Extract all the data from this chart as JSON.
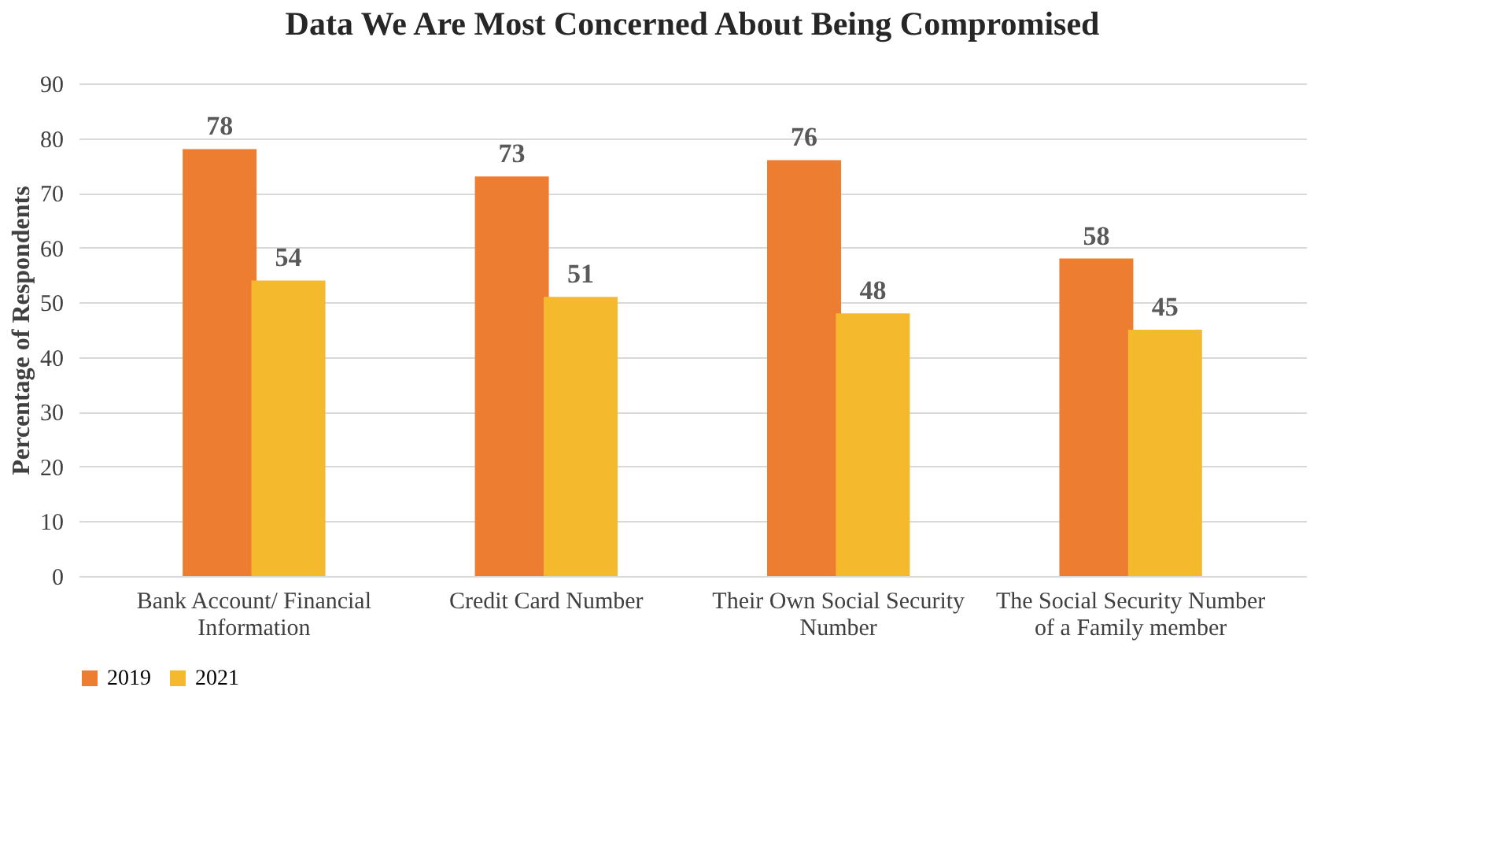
{
  "chart_data": {
    "type": "bar",
    "title": "Data We Are Most Concerned About Being Compromised",
    "ylabel": "Percentage of Respondents",
    "categories": [
      "Bank Account/ Financial Information",
      "Credit Card Number",
      "Their Own Social Security Number",
      "The Social Security Number of a Family member"
    ],
    "series": [
      {
        "name": "2019",
        "color": "#ed7d31",
        "values": [
          78,
          73,
          76,
          58
        ]
      },
      {
        "name": "2021",
        "color": "#f5b92e",
        "values": [
          54,
          51,
          48,
          45
        ]
      }
    ],
    "ylim": [
      0,
      90
    ],
    "yticks": [
      0,
      10,
      20,
      30,
      40,
      50,
      60,
      70,
      80,
      90
    ],
    "grid": "y",
    "legend": "bottom",
    "data_labels": true
  }
}
